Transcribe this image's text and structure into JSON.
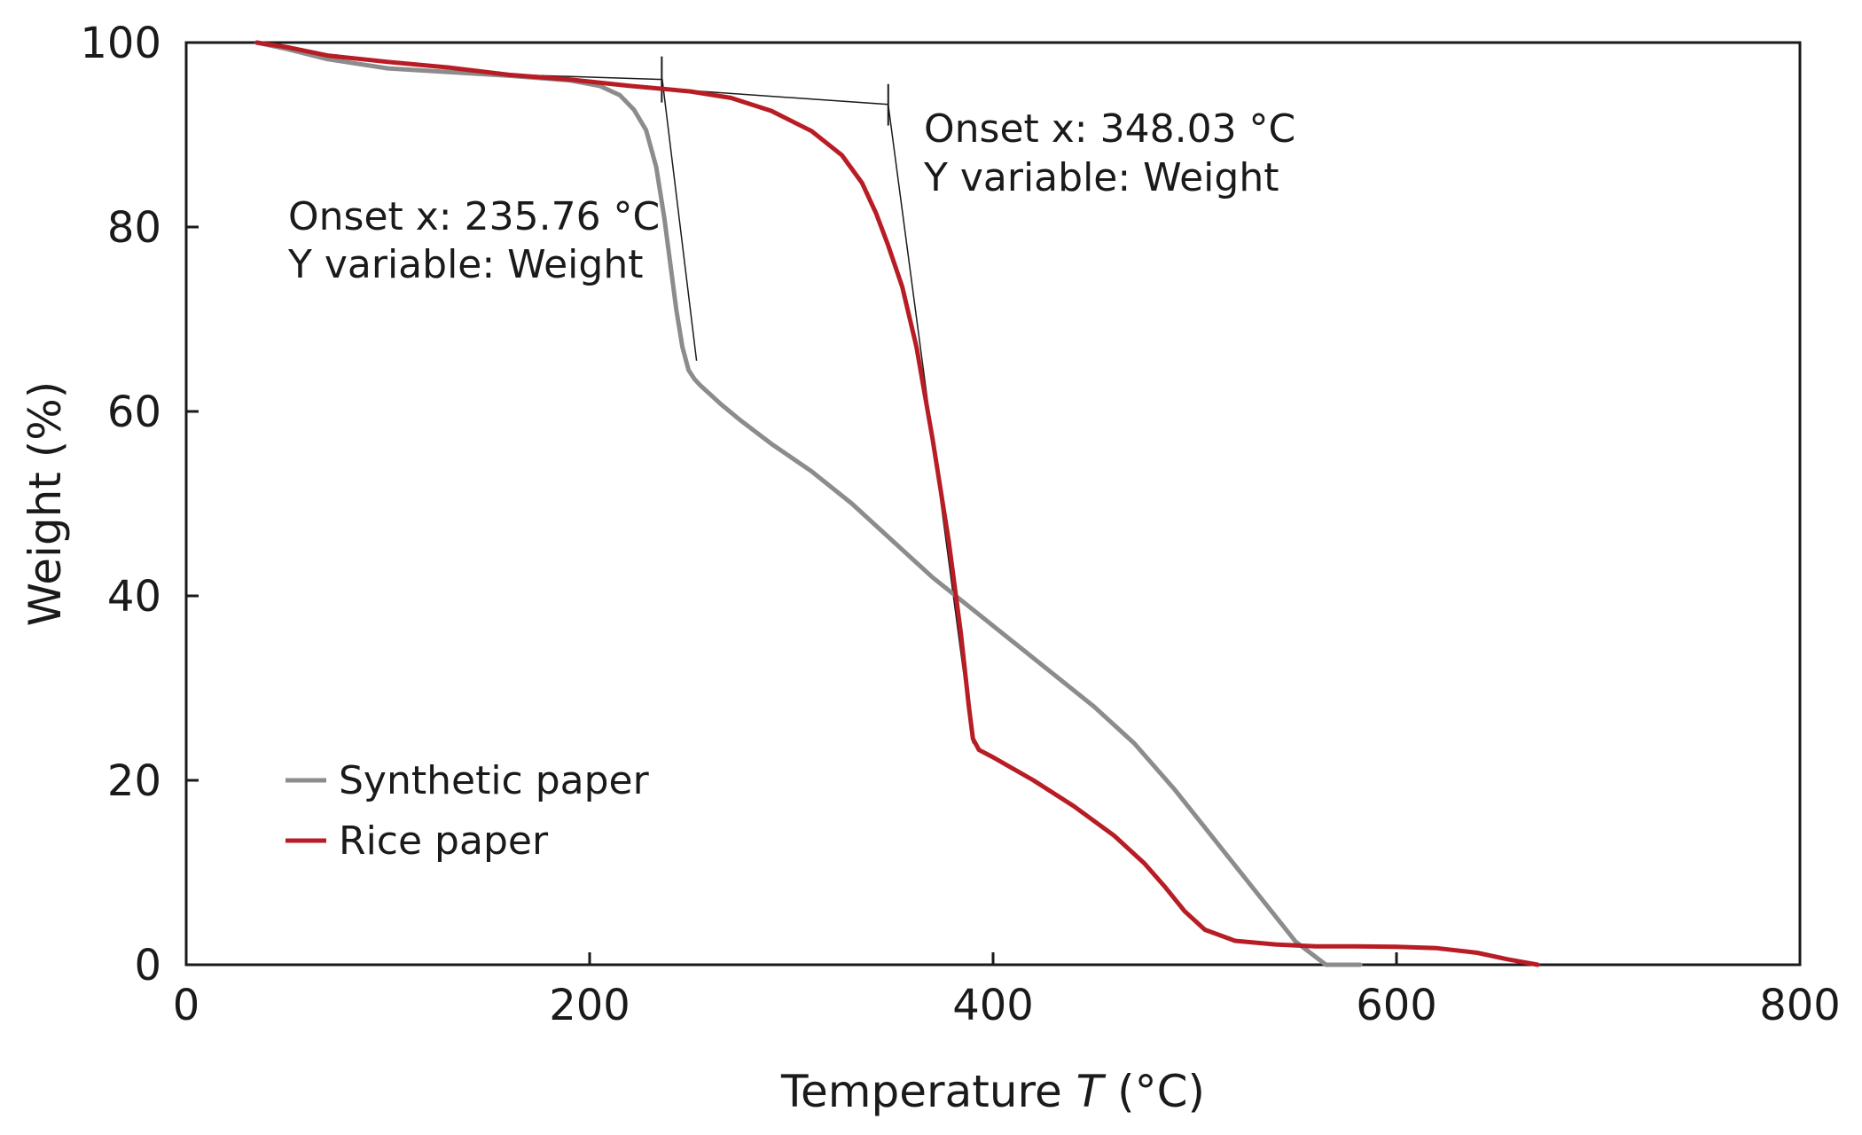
{
  "chart_data": {
    "type": "line",
    "title": "",
    "xlabel_main": "Temperature ",
    "xlabel_italic": "T",
    "xlabel_unit": " (°C)",
    "ylabel": "Weight (%)",
    "xlim": [
      0,
      800
    ],
    "ylim": [
      0,
      100
    ],
    "x_ticks": [
      0,
      200,
      400,
      600,
      800
    ],
    "x_tick_labels": [
      "0",
      "200",
      "400",
      "600",
      "800"
    ],
    "y_ticks": [
      0,
      20,
      40,
      60,
      80,
      100
    ],
    "y_tick_labels": [
      "0",
      "20",
      "40",
      "60",
      "80",
      "100"
    ],
    "grid": false,
    "legend_position": "lower-left",
    "series": [
      {
        "name": "Synthetic paper",
        "color": "#8c8c8c",
        "x": [
          35,
          50,
          70,
          100,
          130,
          160,
          190,
          205,
          215,
          222,
          228,
          233,
          237,
          240,
          243,
          246,
          249,
          252,
          255,
          258,
          265,
          275,
          290,
          310,
          330,
          350,
          370,
          390,
          410,
          430,
          450,
          470,
          490,
          510,
          530,
          550,
          565,
          575,
          582
        ],
        "y": [
          100,
          99.3,
          98.2,
          97.2,
          96.8,
          96.4,
          95.9,
          95.3,
          94.3,
          92.7,
          90.5,
          86.5,
          81,
          76,
          71,
          67,
          64.5,
          63.5,
          62.8,
          62.2,
          60.8,
          59,
          56.5,
          53.5,
          50,
          46,
          42,
          38.5,
          35,
          31.5,
          28,
          24,
          19,
          13.5,
          8,
          2.5,
          0,
          0,
          0
        ]
      },
      {
        "name": "Rice paper",
        "color": "#b81c24",
        "x": [
          35,
          50,
          70,
          100,
          130,
          160,
          190,
          220,
          250,
          270,
          290,
          310,
          325,
          335,
          342,
          348,
          355,
          362,
          370,
          378,
          384,
          388,
          390,
          393,
          400,
          420,
          440,
          460,
          475,
          485,
          495,
          505,
          520,
          540,
          560,
          580,
          600,
          620,
          640,
          655,
          670
        ],
        "y": [
          100,
          99.5,
          98.6,
          97.9,
          97.3,
          96.5,
          96,
          95.3,
          94.7,
          94,
          92.6,
          90.4,
          87.8,
          84.8,
          81.5,
          78,
          73.5,
          67,
          57,
          46,
          36,
          28,
          24.5,
          23.3,
          22.5,
          20,
          17.2,
          14,
          11,
          8.5,
          5.8,
          3.8,
          2.6,
          2.2,
          2,
          2,
          1.95,
          1.8,
          1.3,
          0.6,
          0
        ]
      }
    ],
    "annotations": [
      {
        "id": "synthetic-onset",
        "text_line1": "Onset x: 235.76 °C",
        "text_line2": "Y variable: Weight",
        "onset_x": 235.76,
        "baseline_points": [
          [
            150,
            96.6
          ],
          [
            236,
            96.0
          ]
        ],
        "tangent_points": [
          [
            236,
            96.0
          ],
          [
            253,
            65.5
          ]
        ],
        "marker_y": [
          93.5,
          98.5
        ]
      },
      {
        "id": "rice-onset",
        "text_line1": "Onset x: 348.03 °C",
        "text_line2": "Y variable: Weight",
        "onset_x": 348.03,
        "baseline_points": [
          [
            236,
            95.0
          ],
          [
            348,
            93.3
          ]
        ],
        "tangent_points": [
          [
            348,
            93.3
          ],
          [
            390,
            24.0
          ]
        ],
        "marker_y": [
          91.0,
          95.5
        ]
      }
    ]
  }
}
